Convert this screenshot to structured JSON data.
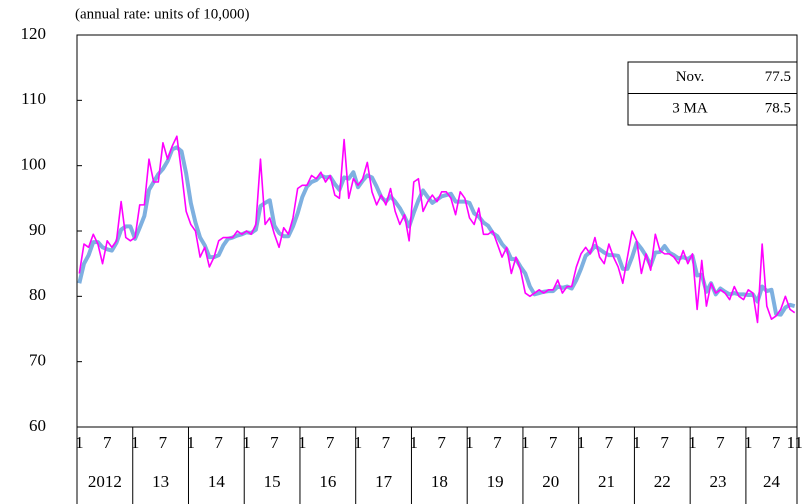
{
  "chart_data": {
    "type": "line",
    "subtitle": "(annual rate: units of 10,000)",
    "categories": [
      "1",
      null,
      null,
      null,
      null,
      null,
      "7",
      null,
      null,
      null,
      null,
      null,
      "1",
      null,
      null,
      null,
      null,
      null,
      "7",
      null,
      null,
      null,
      null,
      null,
      "1",
      null,
      null,
      null,
      null,
      null,
      "7",
      null,
      null,
      null,
      null,
      null,
      "1",
      null,
      null,
      null,
      null,
      null,
      "7",
      null,
      null,
      null,
      null,
      null,
      "1",
      null,
      null,
      null,
      null,
      null,
      "7",
      null,
      null,
      null,
      null,
      null,
      "1",
      null,
      null,
      null,
      null,
      null,
      "7",
      null,
      null,
      null,
      null,
      null,
      "1",
      null,
      null,
      null,
      null,
      null,
      "7",
      null,
      null,
      null,
      null,
      null,
      "1",
      null,
      null,
      null,
      null,
      null,
      "7",
      null,
      null,
      null,
      null,
      null,
      "1",
      null,
      null,
      null,
      null,
      null,
      "7",
      null,
      null,
      null,
      null,
      null,
      "1",
      null,
      null,
      null,
      null,
      null,
      "7",
      null,
      null,
      null,
      null,
      null,
      "1",
      null,
      null,
      null,
      null,
      null,
      "7",
      null,
      null,
      null,
      null,
      null,
      "1",
      null,
      null,
      null,
      null,
      null,
      "7",
      null,
      null,
      null,
      null,
      null,
      "1",
      null,
      null,
      null,
      null,
      null,
      "7",
      null,
      null,
      null,
      "11"
    ],
    "year_labels": [
      "2012",
      "13",
      "14",
      "15",
      "16",
      "17",
      "18",
      "19",
      "20",
      "21",
      "22",
      "23",
      "24"
    ],
    "ylim": [
      60,
      120
    ],
    "yticks": [
      60,
      70,
      80,
      90,
      100,
      110,
      120
    ],
    "annotations": [
      {
        "label": "Nov.",
        "value": 77.5
      },
      {
        "label": "3 MA",
        "value": 78.5
      }
    ],
    "series": [
      {
        "color": "#7eb0e0",
        "values": [
          82,
          85,
          86.3,
          88.3,
          88.3,
          87.5,
          87.2,
          87,
          88.2,
          90.2,
          90.7,
          90.7,
          88.8,
          90.5,
          92.3,
          96.3,
          97.5,
          98.7,
          99.5,
          100.7,
          102.5,
          102.8,
          102.2,
          98.8,
          94.3,
          91.3,
          89,
          87.8,
          86,
          86,
          86.3,
          87.8,
          88.8,
          89,
          89.3,
          89.5,
          89.8,
          89.7,
          90.2,
          93.8,
          94.3,
          94.7,
          90.8,
          89.7,
          89.2,
          89.2,
          90.7,
          92.7,
          95.2,
          96.8,
          97.5,
          97.8,
          98.5,
          98.2,
          98.3,
          97.2,
          96.3,
          98.2,
          98,
          99,
          96.7,
          97.7,
          98.5,
          98.2,
          96.8,
          95.2,
          94.5,
          95.3,
          94.5,
          93.5,
          92.2,
          90.7,
          92.8,
          94.7,
          96.2,
          95.2,
          94.3,
          94.8,
          95.3,
          95.5,
          95.7,
          94.5,
          94.5,
          94.5,
          94.3,
          92.7,
          92.2,
          91.3,
          90.8,
          89.7,
          89.2,
          88,
          87.2,
          85.7,
          85.7,
          84.5,
          83.5,
          81.5,
          80.3,
          80.5,
          80.7,
          80.8,
          80.8,
          81.5,
          81.3,
          81.5,
          81.2,
          82.5,
          84.2,
          86.2,
          86.8,
          87.7,
          87.2,
          86.7,
          86.3,
          86.3,
          86.2,
          84.2,
          84.2,
          86,
          88.2,
          87.3,
          86.2,
          84.7,
          86.7,
          86.8,
          87.7,
          86.7,
          86.3,
          85.8,
          86,
          85.7,
          86.2,
          83.2,
          83.3,
          80.7,
          82,
          80.3,
          81.2,
          80.7,
          80.3,
          80.5,
          80.3,
          80.3,
          80.2,
          80.3,
          79.2,
          81.5,
          80.8,
          81,
          77.3,
          77.2,
          78.3,
          78.7,
          78.5
        ]
      },
      {
        "color": "#ff00ff",
        "values": [
          83.5,
          88,
          87.5,
          89.5,
          88,
          85,
          88.5,
          87.5,
          88.5,
          94.5,
          89,
          88.5,
          89,
          94,
          94,
          101,
          97.5,
          97.5,
          103.5,
          101,
          103,
          104.5,
          99,
          93,
          91,
          90,
          86,
          87.5,
          84.5,
          86,
          88.5,
          89,
          89,
          89,
          90,
          89.5,
          90,
          89.5,
          91,
          101,
          91,
          92,
          89.5,
          87.5,
          90.5,
          89.5,
          92,
          96.5,
          97,
          97,
          98.5,
          98,
          99,
          97.5,
          98.5,
          95.5,
          95,
          104,
          95,
          98,
          97,
          98,
          100.5,
          96,
          94,
          95.5,
          94,
          96.5,
          93,
          91,
          92.5,
          88.5,
          97.5,
          98,
          93,
          94.5,
          95.5,
          94.5,
          96,
          96,
          95,
          92.5,
          96,
          95,
          92,
          91,
          93.5,
          89.5,
          89.5,
          90,
          88,
          86,
          87.5,
          83.5,
          86,
          84,
          80.5,
          80,
          80.5,
          81,
          80.5,
          81,
          81,
          82.5,
          80.5,
          81.5,
          81.5,
          84.5,
          86.5,
          87.5,
          86.5,
          89,
          86,
          85,
          88,
          86,
          84.5,
          82,
          86,
          90,
          88.5,
          83.5,
          86.5,
          84,
          89.5,
          87,
          86.5,
          86.5,
          86,
          85,
          87,
          85,
          86.5,
          78,
          85.5,
          78.5,
          82,
          80.5,
          81,
          80.5,
          79.5,
          81.5,
          80,
          79.5,
          81,
          80.5,
          76,
          88,
          78.5,
          76.5,
          77,
          78,
          80,
          78,
          77.5
        ]
      }
    ]
  }
}
